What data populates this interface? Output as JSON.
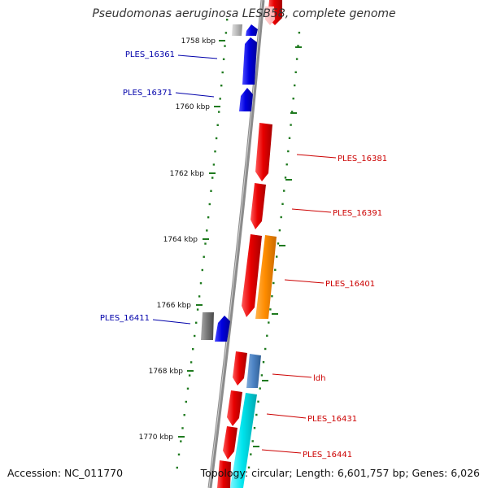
{
  "title": "Pseudomonas aeruginosa LESB58, complete genome",
  "footer": {
    "accession": "Accession: NC_011770",
    "summary": "Topology: circular; Length: 6,601,757 bp; Genes: 6,026"
  },
  "colors": {
    "backbone": "#8c8c8c",
    "forward_gene": "#e80000",
    "reverse_gene": "#0000e0",
    "grey_gene": "#7a7a7a",
    "light_grey_gene": "#b8b8b8",
    "orange_gene": "#ff8c00",
    "steelblue_gene": "#4f86c6",
    "cyan_gene": "#00e5ee",
    "tick": "#1f7a1f",
    "forward_label": "#cc0000",
    "reverse_label": "#0000aa"
  },
  "ticks": [
    {
      "label": "1758 kbp",
      "kbp": 1758
    },
    {
      "label": "1760 kbp",
      "kbp": 1760
    },
    {
      "label": "1762 kbp",
      "kbp": 1762
    },
    {
      "label": "1764 kbp",
      "kbp": 1764
    },
    {
      "label": "1766 kbp",
      "kbp": 1766
    },
    {
      "label": "1768 kbp",
      "kbp": 1768
    },
    {
      "label": "1770 kbp",
      "kbp": 1770
    }
  ],
  "labels": [
    {
      "text": "PLES_16361",
      "strand": "reverse"
    },
    {
      "text": "PLES_16371",
      "strand": "reverse"
    },
    {
      "text": "PLES_16381",
      "strand": "forward"
    },
    {
      "text": "PLES_16391",
      "strand": "forward"
    },
    {
      "text": "PLES_16401",
      "strand": "forward"
    },
    {
      "text": "PLES_16411",
      "strand": "reverse"
    },
    {
      "text": "ldh",
      "strand": "forward"
    },
    {
      "text": "PLES_16431",
      "strand": "forward"
    },
    {
      "text": "PLES_16441",
      "strand": "forward"
    }
  ]
}
